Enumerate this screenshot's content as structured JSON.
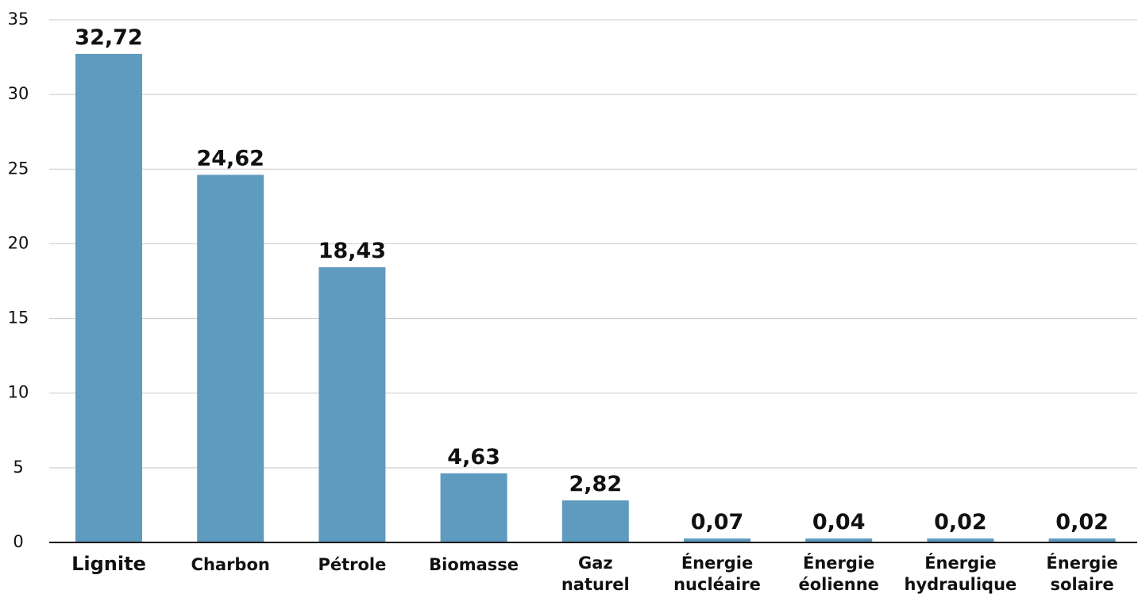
{
  "chart_data": {
    "type": "bar",
    "categories": [
      "Lignite",
      "Charbon",
      "Pétrole",
      "Biomasse",
      "Gaz naturel",
      "Énergie nucléaire",
      "Énergie éolienne",
      "Énergie hydraulique",
      "Énergie solaire"
    ],
    "values": [
      32.72,
      24.62,
      18.43,
      4.63,
      2.82,
      0.07,
      0.04,
      0.02,
      0.02
    ],
    "value_labels": [
      "32,72",
      "24,62",
      "18,43",
      "4,63",
      "2,82",
      "0,07",
      "0,04",
      "0,02",
      "0,02"
    ],
    "category_label_lines": [
      [
        "Lignite"
      ],
      [
        "Charbon"
      ],
      [
        "Pétrole"
      ],
      [
        "Biomasse"
      ],
      [
        "Gaz",
        "naturel"
      ],
      [
        "Énergie",
        "nucléaire"
      ],
      [
        "Énergie",
        "éolienne"
      ],
      [
        "Énergie",
        "hydraulique"
      ],
      [
        "Énergie",
        "solaire"
      ]
    ],
    "yticks": [
      0,
      5,
      10,
      15,
      20,
      25,
      30,
      35
    ],
    "ylim": [
      0,
      35
    ],
    "title": "",
    "xlabel": "",
    "ylabel": "",
    "grid": true,
    "legend": "none",
    "colors": {
      "bar": "#5f9abf",
      "grid": "#c9c9c9",
      "axis": "#111111",
      "text": "#111111"
    }
  }
}
